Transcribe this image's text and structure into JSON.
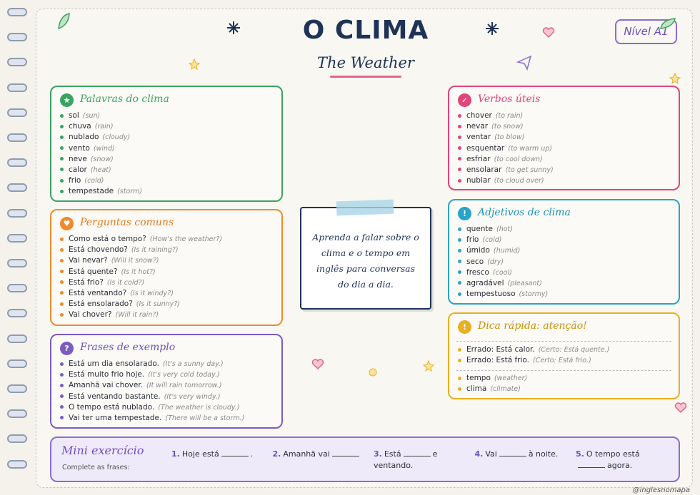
{
  "header": {
    "title": "O CLIMA",
    "subtitle": "The Weather",
    "level": "Nível A1"
  },
  "sections": {
    "words": {
      "title": "Palavras do clima",
      "items": [
        {
          "pt": "sol",
          "en": "(sun)"
        },
        {
          "pt": "chuva",
          "en": "(rain)"
        },
        {
          "pt": "nublado",
          "en": "(cloudy)"
        },
        {
          "pt": "vento",
          "en": "(wind)"
        },
        {
          "pt": "neve",
          "en": "(snow)"
        },
        {
          "pt": "calor",
          "en": "(heat)"
        },
        {
          "pt": "frio",
          "en": "(cold)"
        },
        {
          "pt": "tempestade",
          "en": "(storm)"
        }
      ]
    },
    "questions": {
      "title": "Perguntas comuns",
      "items": [
        {
          "pt": "Como está o tempo?",
          "en": "(How's the weather?)"
        },
        {
          "pt": "Está chovendo?",
          "en": "(Is it raining?)"
        },
        {
          "pt": "Vai nevar?",
          "en": "(Will it snow?)"
        },
        {
          "pt": "Está quente?",
          "en": "(Is it hot?)"
        },
        {
          "pt": "Está frio?",
          "en": "(Is it cold?)"
        },
        {
          "pt": "Está ventando?",
          "en": "(Is it windy?)"
        },
        {
          "pt": "Está ensolarado?",
          "en": "(Is it sunny?)"
        },
        {
          "pt": "Vai chover?",
          "en": "(Will it rain?)"
        }
      ]
    },
    "examples": {
      "title": "Frases de exemplo",
      "items": [
        {
          "pt": "Está um dia ensolarado.",
          "en": "(It's a sunny day.)"
        },
        {
          "pt": "Está muito frio hoje.",
          "en": "(It's very cold today.)"
        },
        {
          "pt": "Amanhã vai chover.",
          "en": "(It will rain tomorrow.)"
        },
        {
          "pt": "Está ventando bastante.",
          "en": "(It's very windy.)"
        },
        {
          "pt": "O tempo está nublado.",
          "en": "(The weather is cloudy.)"
        },
        {
          "pt": "Vai ter uma tempestade.",
          "en": "(There will be a storm.)"
        }
      ]
    },
    "verbs": {
      "title": "Verbos úteis",
      "items": [
        {
          "pt": "chover",
          "en": "(to rain)"
        },
        {
          "pt": "nevar",
          "en": "(to snow)"
        },
        {
          "pt": "ventar",
          "en": "(to blow)"
        },
        {
          "pt": "esquentar",
          "en": "(to warm up)"
        },
        {
          "pt": "esfriar",
          "en": "(to cool down)"
        },
        {
          "pt": "ensolarar",
          "en": "(to get sunny)"
        },
        {
          "pt": "nublar",
          "en": "(to cloud over)"
        }
      ]
    },
    "adjectives": {
      "title": "Adjetivos de clima",
      "items": [
        {
          "pt": "quente",
          "en": "(hot)"
        },
        {
          "pt": "frio",
          "en": "(cold)"
        },
        {
          "pt": "úmido",
          "en": "(humid)"
        },
        {
          "pt": "seco",
          "en": "(dry)"
        },
        {
          "pt": "fresco",
          "en": "(cool)"
        },
        {
          "pt": "agradável",
          "en": "(pleasant)"
        },
        {
          "pt": "tempestuoso",
          "en": "(stormy)"
        }
      ]
    },
    "tips": {
      "title": "Dica rápida: atenção!",
      "items": [
        {
          "pt": "Errado: Está calor.",
          "en": "(Certo: Está quente.)"
        },
        {
          "pt": "Errado: Está frio.",
          "en": "(Certo: Está frio.)"
        }
      ],
      "extra": [
        {
          "pt": "tempo",
          "en": "(weather)"
        },
        {
          "pt": "clima",
          "en": "(climate)"
        }
      ]
    }
  },
  "note": "Aprenda a falar sobre o clima e o tempo em inglês para conversas do dia a dia.",
  "exercise": {
    "title": "Mini exercício",
    "subtitle": "Complete as frases:",
    "items": [
      {
        "num": "1.",
        "before": "Hoje está",
        "after": "."
      },
      {
        "num": "2.",
        "before": "Amanhã vai"
      },
      {
        "num": "3.",
        "before": "Está",
        "after": "e ventando."
      },
      {
        "num": "4.",
        "before": "Vai",
        "after": "à noite."
      },
      {
        "num": "5.",
        "before": "O tempo está",
        "after": "agora."
      }
    ]
  },
  "credit": "@inglesnomapa"
}
